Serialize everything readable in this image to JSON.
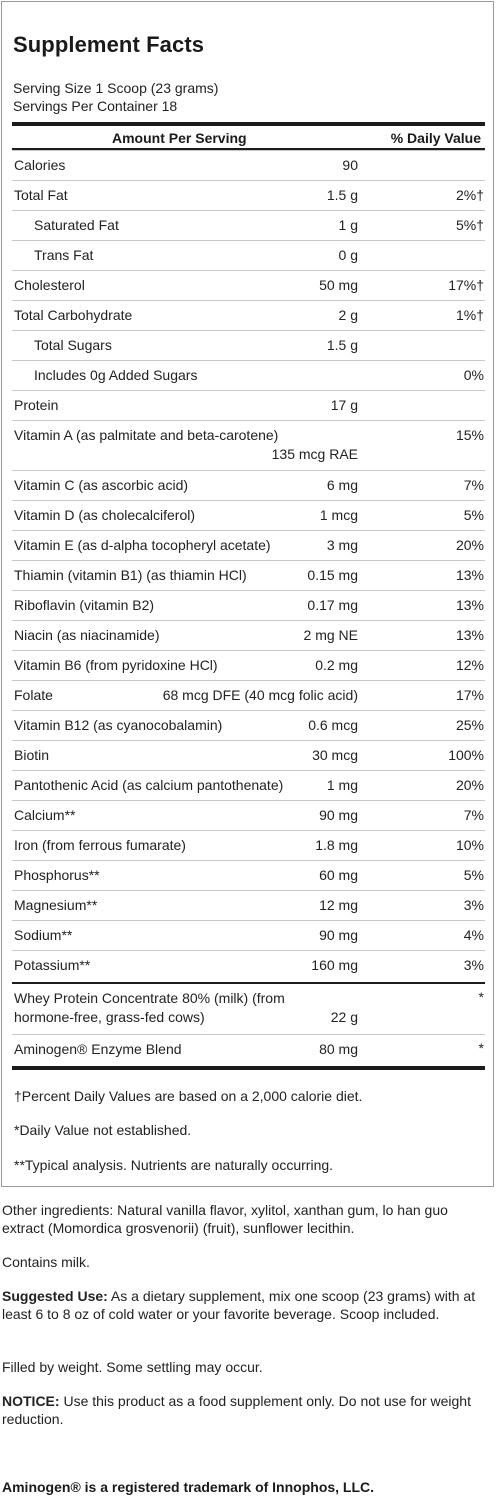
{
  "label": {
    "title": "Supplement Facts",
    "serving_size": "Serving Size 1 Scoop (23 grams)",
    "servings_per_container": "Servings Per Container 18",
    "header_amount": "Amount Per Serving",
    "header_dv": "% Daily Value"
  },
  "rows": [
    {
      "name": "Calories",
      "amount": "90",
      "dv": ""
    },
    {
      "name": "Total Fat",
      "amount": "1.5 g",
      "dv": "2%†"
    },
    {
      "name": "Saturated Fat",
      "amount": "1 g",
      "dv": "5%†"
    },
    {
      "name": "Trans Fat",
      "amount": "0 g",
      "dv": ""
    },
    {
      "name": "Cholesterol",
      "amount": "50 mg",
      "dv": "17%†"
    },
    {
      "name": "Total Carbohydrate",
      "amount": "2 g",
      "dv": "1%†"
    },
    {
      "name": "Total Sugars",
      "amount": "1.5 g",
      "dv": ""
    },
    {
      "name": "Includes 0g Added Sugars",
      "amount": "",
      "dv": "0%"
    },
    {
      "name": "Protein",
      "amount": "17 g",
      "dv": ""
    },
    {
      "name": "Vitamin A (as palmitate and beta-carotene)",
      "amount": "135 mcg RAE",
      "dv": "15%"
    },
    {
      "name": "Vitamin C (as ascorbic acid)",
      "amount": "6 mg",
      "dv": "7%"
    },
    {
      "name": "Vitamin D (as cholecalciferol)",
      "amount": "1 mcg",
      "dv": "5%"
    },
    {
      "name": "Vitamin E (as d-alpha tocopheryl acetate)",
      "amount": "3 mg",
      "dv": "20%"
    },
    {
      "name": "Thiamin (vitamin B1) (as thiamin HCl)",
      "amount": "0.15 mg",
      "dv": "13%"
    },
    {
      "name": "Riboflavin (vitamin B2)",
      "amount": "0.17 mg",
      "dv": "13%"
    },
    {
      "name": "Niacin (as niacinamide)",
      "amount": "2 mg NE",
      "dv": "13%"
    },
    {
      "name": "Vitamin B6 (from pyridoxine HCl)",
      "amount": "0.2 mg",
      "dv": "12%"
    },
    {
      "name": "Folate",
      "amount": "68 mcg DFE (40 mcg folic acid)",
      "dv": "17%"
    },
    {
      "name": "Vitamin B12 (as cyanocobalamin)",
      "amount": "0.6 mcg",
      "dv": "25%"
    },
    {
      "name": "Biotin",
      "amount": "30 mcg",
      "dv": "100%"
    },
    {
      "name": "Pantothenic Acid (as calcium pantothenate)",
      "amount": "1 mg",
      "dv": "20%"
    },
    {
      "name": "Calcium**",
      "amount": "90 mg",
      "dv": "7%"
    },
    {
      "name": "Iron (from ferrous fumarate)",
      "amount": "1.8 mg",
      "dv": "10%"
    },
    {
      "name": "Phosphorus**",
      "amount": "60 mg",
      "dv": "5%"
    },
    {
      "name": "Magnesium**",
      "amount": "12 mg",
      "dv": "3%"
    },
    {
      "name": "Sodium**",
      "amount": "90 mg",
      "dv": "4%"
    },
    {
      "name": "Potassium**",
      "amount": "160 mg",
      "dv": "3%"
    },
    {
      "name": "Whey Protein Concentrate 80% (milk) (from",
      "name2": "hormone-free, grass-fed cows)",
      "amount": "22 g",
      "dv": "*"
    },
    {
      "name": "Aminogen® Enzyme Blend",
      "amount": "80 mg",
      "dv": "*"
    }
  ],
  "footnotes": {
    "dv_basis": "†Percent Daily Values are based on a 2,000 calorie diet.",
    "not_established": "*Daily Value not established.",
    "typical": "**Typical analysis. Nutrients are naturally occurring."
  },
  "info": {
    "other_ingredients": "Other ingredients: Natural vanilla flavor, xylitol, xanthan gum, lo han guo extract (Momordica grosvenorii) (fruit), sunflower lecithin.",
    "contains": "Contains milk.",
    "suggested_label": "Suggested Use:",
    "suggested_text": " As a dietary supplement, mix one scoop (23 grams) with at least 6 to 8 oz of cold water or your favorite beverage. Scoop included.",
    "fill": "Filled by weight. Some settling may occur.",
    "notice_label": "NOTICE:",
    "notice_text": " Use this product as a food supplement only. Do not use for weight reduction.",
    "trademark": "Aminogen® is a registered trademark of Innophos, LLC."
  }
}
